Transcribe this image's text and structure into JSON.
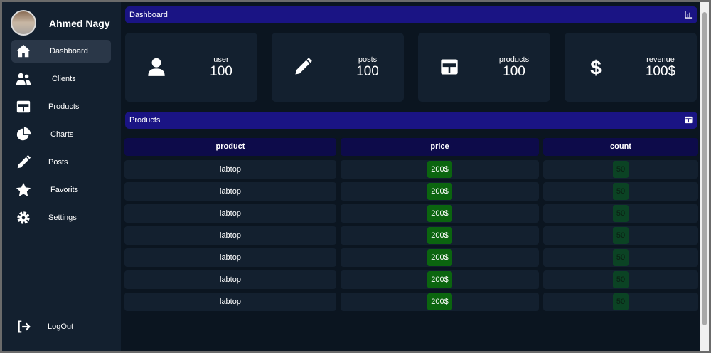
{
  "user": {
    "name": "Ahmed Nagy"
  },
  "sidebar": {
    "items": [
      {
        "label": "Dashboard",
        "icon": "home-icon",
        "active": true
      },
      {
        "label": "Clients",
        "icon": "users-icon"
      },
      {
        "label": "Products",
        "icon": "table-icon"
      },
      {
        "label": "Charts",
        "icon": "pie-chart-icon"
      },
      {
        "label": "Posts",
        "icon": "pencil-icon"
      },
      {
        "label": "Favorits",
        "icon": "star-icon"
      },
      {
        "label": "Settings",
        "icon": "gear-icon"
      }
    ],
    "logout": "LogOut"
  },
  "dashboard": {
    "title": "Dashboard"
  },
  "cards": [
    {
      "label": "user",
      "value": "100",
      "icon": "user-icon"
    },
    {
      "label": "posts",
      "value": "100",
      "icon": "pencil-icon"
    },
    {
      "label": "products",
      "value": "100",
      "icon": "table-icon"
    },
    {
      "label": "revenue",
      "value": "100$",
      "icon": "dollar-icon"
    }
  ],
  "products": {
    "title": "Products",
    "columns": [
      "product",
      "price",
      "count"
    ],
    "rows": [
      [
        "labtop",
        "200$",
        "50"
      ],
      [
        "labtop",
        "200$",
        "50"
      ],
      [
        "labtop",
        "200$",
        "50"
      ],
      [
        "labtop",
        "200$",
        "50"
      ],
      [
        "labtop",
        "200$",
        "50"
      ],
      [
        "labtop",
        "200$",
        "50"
      ],
      [
        "labtop",
        "200$",
        "50"
      ]
    ]
  },
  "colors": {
    "accent": "#1a1484",
    "price": "#0b650f",
    "count": "#0b4324"
  }
}
